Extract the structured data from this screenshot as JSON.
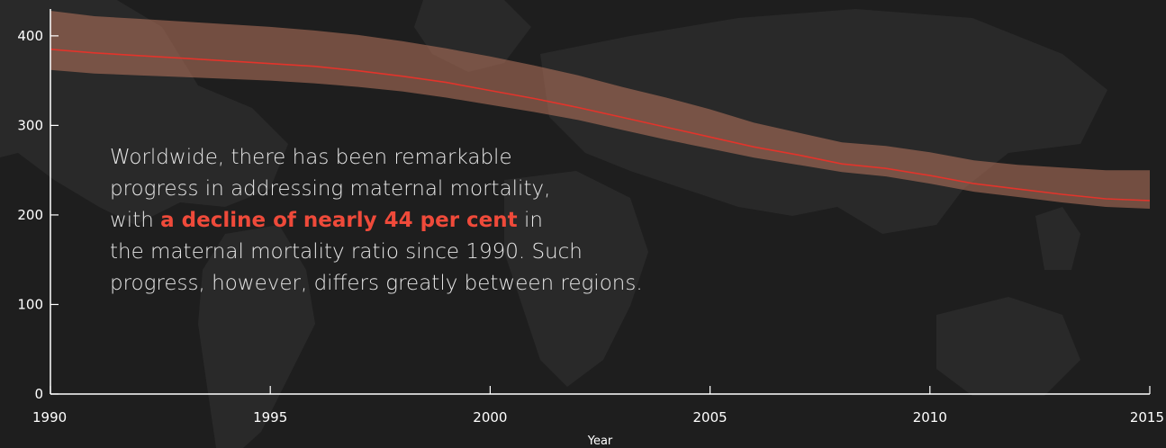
{
  "chart_data": {
    "type": "line",
    "xlabel": "Year",
    "ylabel": "",
    "xlim": [
      1990,
      2015
    ],
    "ylim": [
      0,
      430
    ],
    "x_ticks": [
      "1990",
      "1995",
      "2000",
      "2005",
      "2010",
      "2015"
    ],
    "y_ticks": [
      "0",
      "100",
      "200",
      "300",
      "400"
    ],
    "grid": false,
    "legend": "none",
    "series": [
      {
        "x": [
          1990,
          1991,
          1992,
          1993,
          1994,
          1995,
          1996,
          1997,
          1998,
          1999,
          2000,
          2001,
          2002,
          2003,
          2004,
          2005,
          2006,
          2007,
          2008,
          2009,
          2010,
          2011,
          2012,
          2013,
          2014,
          2015
        ],
        "values": [
          385,
          381,
          378,
          375,
          372,
          369,
          366,
          361,
          355,
          348,
          339,
          330,
          320,
          309,
          298,
          287,
          276,
          267,
          257,
          252,
          244,
          235,
          229,
          223,
          218,
          216
        ],
        "lower": [
          362,
          358,
          356,
          354,
          352,
          350,
          347,
          343,
          338,
          331,
          323,
          315,
          306,
          295,
          284,
          274,
          264,
          256,
          248,
          243,
          235,
          226,
          220,
          214,
          209,
          207
        ],
        "upper": [
          428,
          422,
          419,
          416,
          413,
          410,
          406,
          401,
          394,
          386,
          377,
          367,
          356,
          343,
          331,
          318,
          303,
          292,
          281,
          277,
          270,
          261,
          256,
          253,
          250,
          250
        ]
      }
    ],
    "colors": {
      "line": "#e2342b",
      "band": "#b9765f",
      "highlight": "#ef4a3a"
    }
  },
  "annotation": {
    "line1": "Worldwide, there has been remarkable",
    "line2": "progress in addressing maternal mortality,",
    "line3_pre": "with ",
    "line3_highlight": "a decline of nearly 44 per cent",
    "line3_post": " in",
    "line4": "the maternal mortality ratio since 1990. Such",
    "line5": "progress, however, differs greatly between regions."
  }
}
